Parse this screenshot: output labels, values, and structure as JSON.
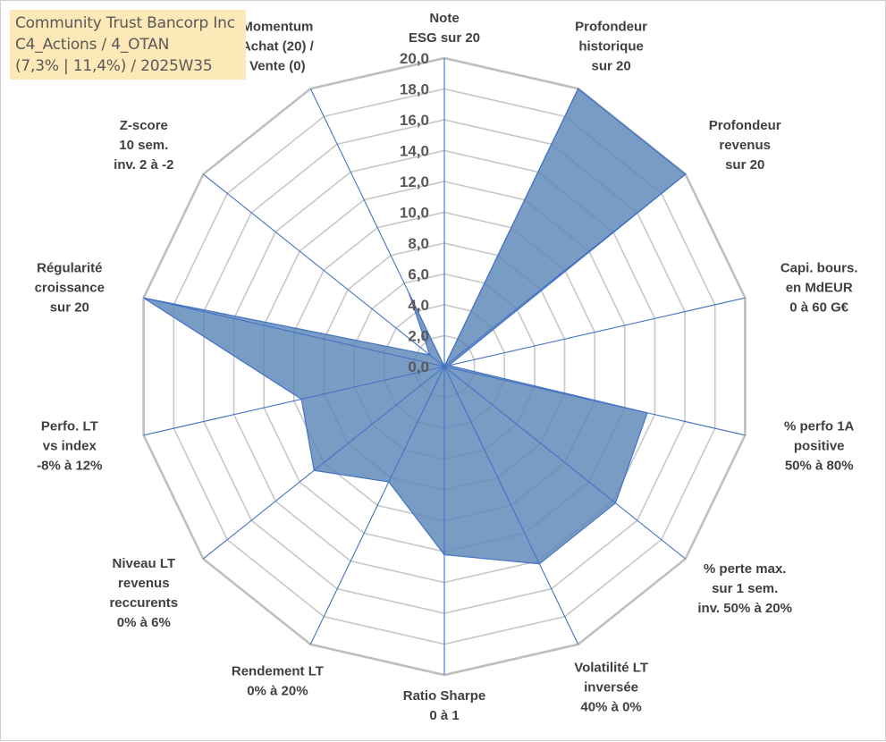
{
  "info": {
    "company": "Community Trust Bancorp Inc",
    "line2": "C4_Actions / 4_OTAN",
    "line3": "(7,3% | 11,4%) / 2025W35"
  },
  "chart_data": {
    "type": "radar",
    "title": "",
    "rlim": [
      0,
      20
    ],
    "tick_labels": [
      "0,0",
      "2,0",
      "4,0",
      "6,0",
      "8,0",
      "10,0",
      "12,0",
      "14,0",
      "16,0",
      "18,0",
      "20,0"
    ],
    "axes": [
      {
        "label": [
          "Note",
          "ESG sur 20"
        ]
      },
      {
        "label": [
          "Profondeur",
          "historique",
          "sur 20"
        ]
      },
      {
        "label": [
          "Profondeur",
          "revenus",
          "sur 20"
        ]
      },
      {
        "label": [
          "Capi. bours.",
          "en MdEUR",
          "0 à 60 G€"
        ]
      },
      {
        "label": [
          "% perfo 1A",
          "positive",
          "50% à 80%"
        ]
      },
      {
        "label": [
          "% perte max.",
          "sur 1 sem.",
          "inv. 50% à 20%"
        ]
      },
      {
        "label": [
          "Volatilité LT",
          "inversée",
          "40% à 0%"
        ]
      },
      {
        "label": [
          "Ratio Sharpe",
          "0 à 1"
        ]
      },
      {
        "label": [
          "Rendement LT",
          "0% à 20%"
        ]
      },
      {
        "label": [
          "Niveau LT",
          "revenus",
          "reccurents",
          "0% à 6%"
        ]
      },
      {
        "label": [
          "Perfo. LT",
          "vs index",
          "-8% à 12%"
        ]
      },
      {
        "label": [
          "Régularité",
          "croissance",
          "sur 20"
        ]
      },
      {
        "label": [
          "Z-score",
          "10 sem.",
          "inv. 2 à -2"
        ]
      },
      {
        "label": [
          "Momentum",
          "Achat (20) /",
          "Vente (0)"
        ]
      }
    ],
    "series": [
      {
        "values": [
          0,
          20,
          20,
          0.3,
          13.5,
          14.2,
          14.2,
          12.2,
          8.3,
          10.8,
          9.5,
          20,
          1.2,
          5.3
        ]
      }
    ],
    "grid": true,
    "legend": "none"
  }
}
